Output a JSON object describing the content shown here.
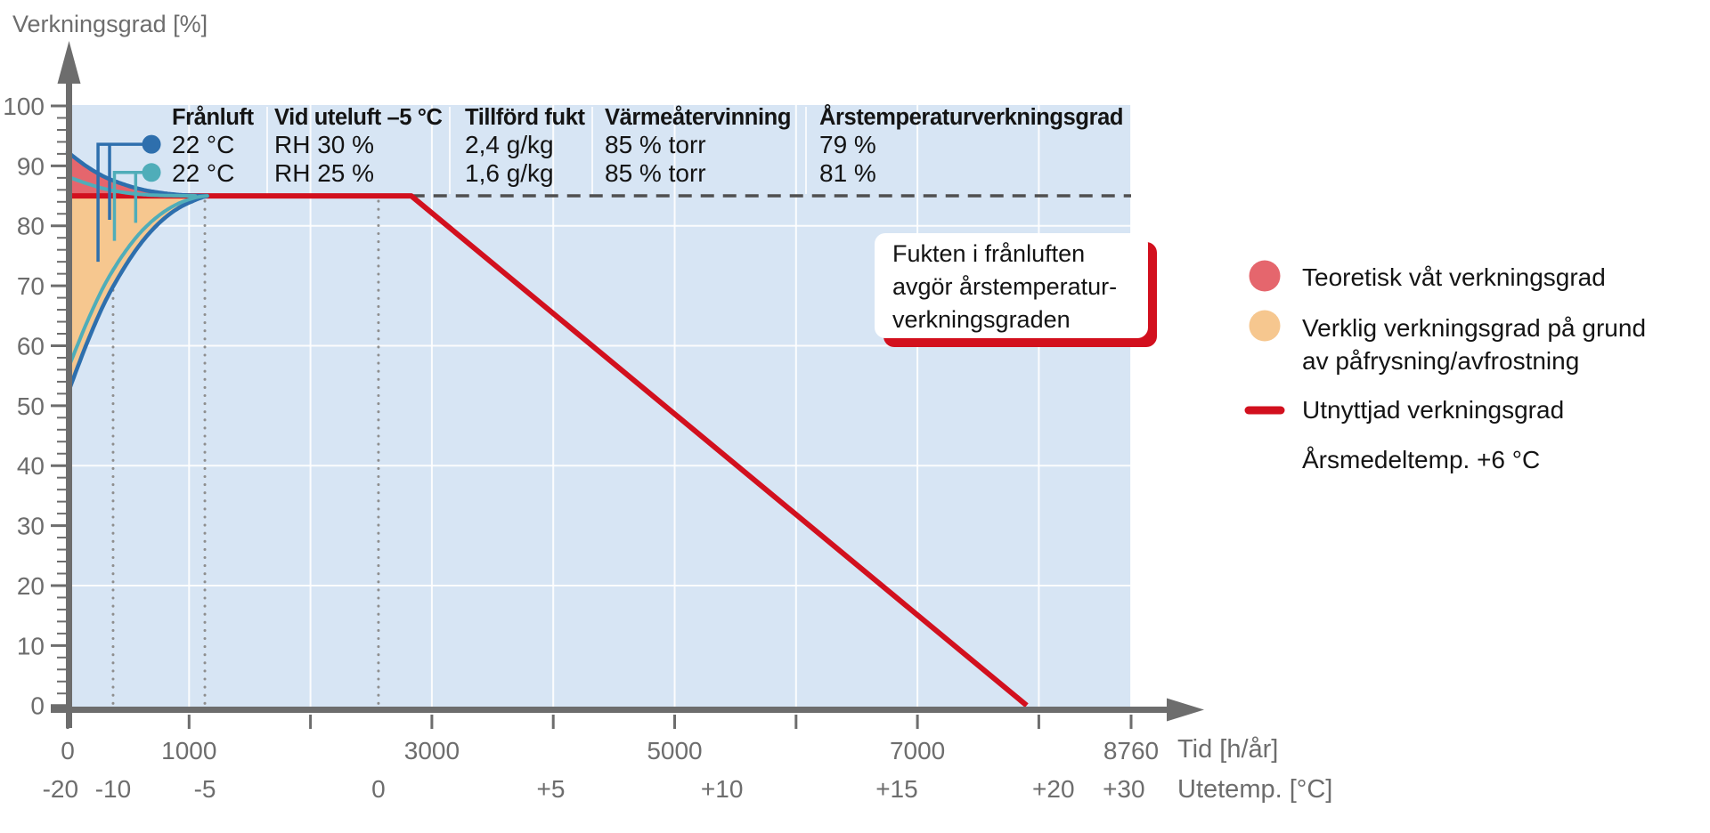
{
  "title": "Verkningsgrad [%]",
  "colors": {
    "plot_bg": "#d7e5f4",
    "grid_white": "#ffffff",
    "red_fill": "#e5666d",
    "orange_fill": "#f6c78f",
    "curve_blue": "#2e6fad",
    "curve_teal": "#4fadb9",
    "red_line": "#d2101e",
    "dash_gray": "#4f4f4f",
    "dot_gray": "#8e8e8e",
    "axis_gray": "#6d6d6d",
    "text_dark": "#141414",
    "callout_bg": "#ffffff"
  },
  "table": {
    "headers": [
      "Frånluft",
      "Vid uteluft –5 °C",
      "Tillförd fukt",
      "Värmeåtervinning",
      "Årstemperaturverkningsgrad"
    ],
    "rows": [
      {
        "marker": "blue-dot",
        "cells": [
          "22 °C",
          "RH 30 %",
          "2,4 g/kg",
          "85 % torr",
          "79 %"
        ]
      },
      {
        "marker": "teal-dot",
        "cells": [
          "22 °C",
          "RH 25 %",
          "1,6 g/kg",
          "85 % torr",
          "81 %"
        ]
      }
    ]
  },
  "callout": {
    "lines": [
      "Fukten i frånluften",
      "avgör årstemperatur-",
      "verkningsgraden"
    ]
  },
  "legend": {
    "items": [
      {
        "swatch": "circle",
        "color": "#e5666d",
        "lines": [
          "Teoretisk våt verkningsgrad"
        ]
      },
      {
        "swatch": "circle",
        "color": "#f6c78f",
        "lines": [
          "Verklig verkningsgrad på grund",
          "av påfrysning/avfrostning"
        ]
      },
      {
        "swatch": "line",
        "color": "#d2101e",
        "lines": [
          "Utnyttjad verkningsgrad"
        ]
      },
      {
        "swatch": "none",
        "color": "",
        "lines": [
          "Årsmedeltemp. +6 °C"
        ]
      }
    ]
  },
  "chart_data": {
    "type": "line",
    "ylabel": "Verkningsgrad [%]",
    "xlabel": "Tid [h/år]",
    "x2label": "Utetemp. [°C]",
    "ylim": [
      0,
      100
    ],
    "xlim": [
      0,
      8760
    ],
    "y_ticks_major": [
      0,
      10,
      20,
      30,
      40,
      50,
      60,
      70,
      80,
      90,
      100
    ],
    "y_minor_step": 2,
    "x_time_ticks": [
      {
        "t": 0,
        "label": "0"
      },
      {
        "t": 1000,
        "label": "1000"
      },
      {
        "t": 2000,
        "label": ""
      },
      {
        "t": 3000,
        "label": "3000"
      },
      {
        "t": 4000,
        "label": ""
      },
      {
        "t": 5000,
        "label": "5000"
      },
      {
        "t": 6000,
        "label": ""
      },
      {
        "t": 7000,
        "label": "7000"
      },
      {
        "t": 8000,
        "label": ""
      },
      {
        "t": 8760,
        "label": "8760"
      }
    ],
    "x_temp_ticks": [
      {
        "t": -60,
        "label": "-20"
      },
      {
        "t": 374,
        "label": "-10"
      },
      {
        "t": 1130,
        "label": "-5"
      },
      {
        "t": 2560,
        "label": "0"
      },
      {
        "t": 3980,
        "label": "+5"
      },
      {
        "t": 5390,
        "label": "+10"
      },
      {
        "t": 6830,
        "label": "+15"
      },
      {
        "t": 8120,
        "label": "+20"
      },
      {
        "t": 8700,
        "label": "+30"
      }
    ],
    "dotted_guides_t": [
      374,
      1130,
      2560
    ],
    "grid": {
      "vertical_t": [
        1000,
        2000,
        3000,
        4000,
        5000,
        6000,
        7000,
        8000,
        8760
      ],
      "horizontal_pct": [
        20,
        40,
        60,
        80
      ]
    },
    "plateau_value": 85,
    "reference_dashed": {
      "value": 85,
      "from_t": 2830,
      "to_t": 8760
    },
    "series": [
      {
        "name": "Utnyttjad verkningsgrad",
        "role": "utilized",
        "color": "#d2101e",
        "width": 6,
        "points": [
          [
            0,
            85
          ],
          [
            2830,
            85
          ],
          [
            7900,
            0
          ]
        ]
      },
      {
        "name": "Teoretisk våt verkningsgrad (22 °C RH 30 %)",
        "role": "wet-upper",
        "color": "#2e6fad",
        "width": 4.5,
        "points": [
          [
            0,
            92.3
          ],
          [
            150,
            90.0
          ],
          [
            300,
            88.2
          ],
          [
            450,
            87.0
          ],
          [
            600,
            86.1
          ],
          [
            750,
            85.55
          ],
          [
            900,
            85.2
          ],
          [
            1050,
            85.03
          ],
          [
            1150,
            85
          ]
        ]
      },
      {
        "name": "Teoretisk våt verkningsgrad (22 °C RH 25 %)",
        "role": "wet-upper",
        "color": "#4fadb9",
        "width": 4,
        "points": [
          [
            0,
            88.2
          ],
          [
            150,
            87.1
          ],
          [
            300,
            86.2
          ],
          [
            450,
            85.6
          ],
          [
            600,
            85.25
          ],
          [
            750,
            85.08
          ],
          [
            900,
            85.02
          ],
          [
            1050,
            85
          ]
        ]
      },
      {
        "name": "Verklig verkningsgrad påfrysning/avfrostning (RH 30 %)",
        "role": "frost-lower",
        "color": "#2e6fad",
        "width": 4.5,
        "points": [
          [
            0,
            52
          ],
          [
            150,
            60
          ],
          [
            300,
            67
          ],
          [
            450,
            72.5
          ],
          [
            600,
            77
          ],
          [
            750,
            80.4
          ],
          [
            900,
            82.8
          ],
          [
            1050,
            84.3
          ],
          [
            1150,
            85
          ]
        ]
      },
      {
        "name": "Verklig verkningsgrad påfrysning/avfrostning (RH 25 %)",
        "role": "frost-lower",
        "color": "#4fadb9",
        "width": 4,
        "points": [
          [
            0,
            56
          ],
          [
            150,
            63.5
          ],
          [
            300,
            70
          ],
          [
            450,
            75
          ],
          [
            600,
            78.9
          ],
          [
            750,
            81.7
          ],
          [
            900,
            83.6
          ],
          [
            1050,
            84.7
          ],
          [
            1150,
            85
          ]
        ]
      }
    ],
    "fills": [
      {
        "label": "Teoretisk våt verkningsgrad",
        "color": "#e5666d",
        "upper_series": 1,
        "lower_value": 85
      },
      {
        "label": "Verklig verkningsgrad på grund av påfrysning/avfrostning",
        "color": "#f6c78f",
        "upper_value": 85,
        "lower_series": 3
      }
    ],
    "row_markers": [
      {
        "row": 0,
        "color": "#2e6fad",
        "dot_t": 690,
        "dot_p": 93.6,
        "elbow_t": 250,
        "legs": [
          {
            "t": 250,
            "to_p": 74
          },
          {
            "t": 345,
            "to_p": 81
          }
        ]
      },
      {
        "row": 1,
        "color": "#4fadb9",
        "dot_t": 690,
        "dot_p": 88.9,
        "elbow_t": 385,
        "legs": [
          {
            "t": 385,
            "to_p": 77.5
          },
          {
            "t": 560,
            "to_p": 80.5
          }
        ]
      }
    ]
  }
}
